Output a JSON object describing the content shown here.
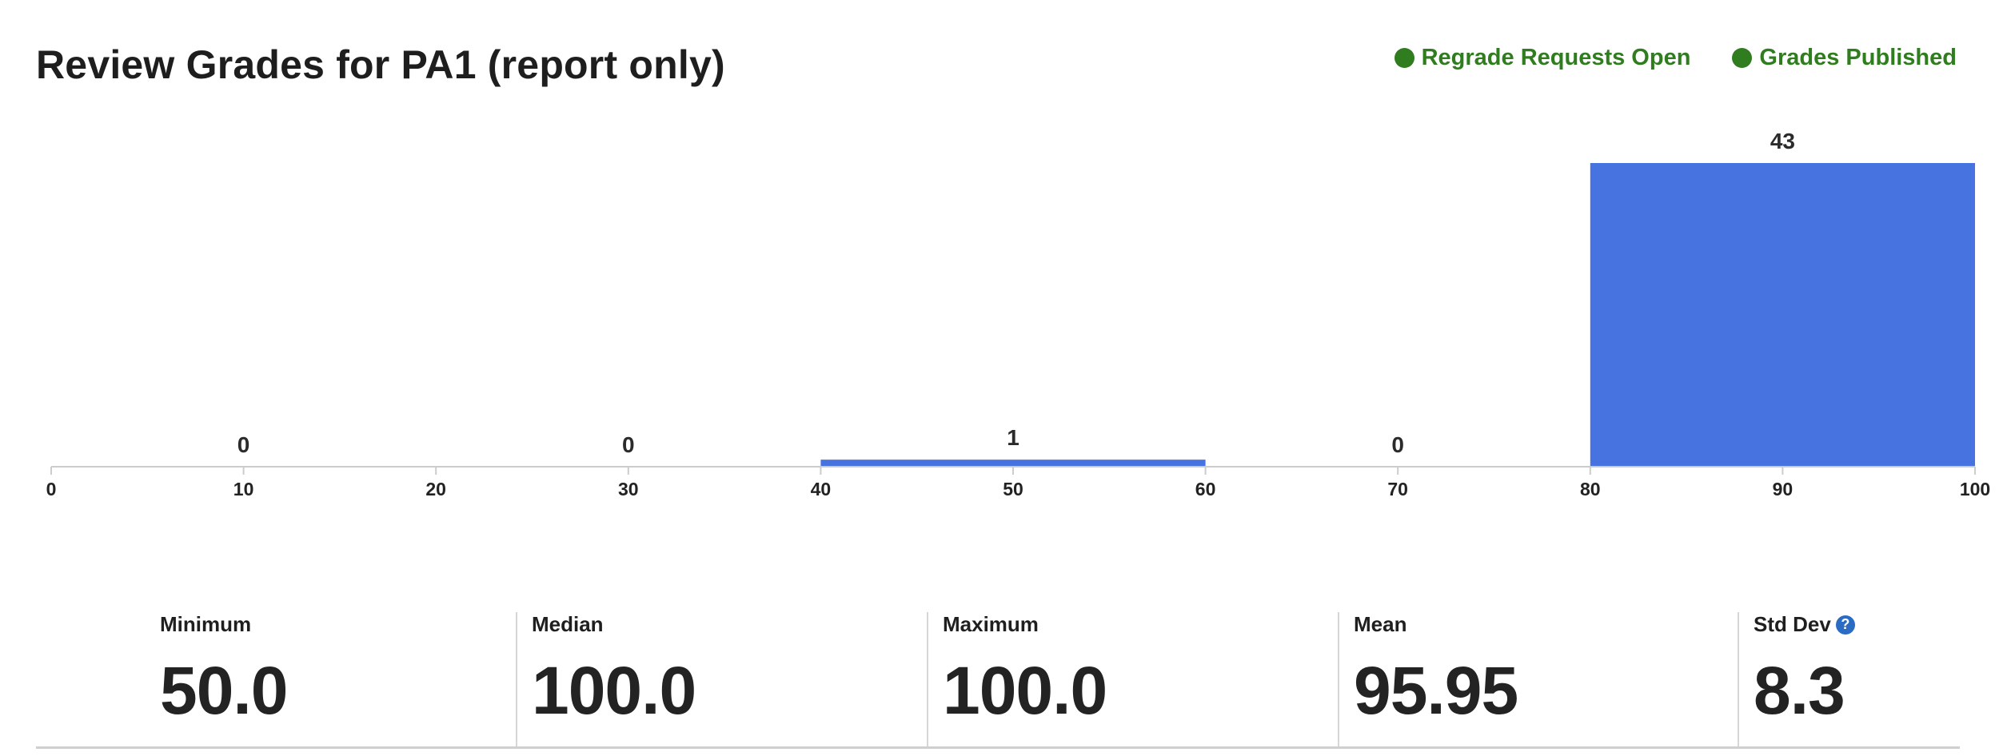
{
  "page": {
    "title": "Review Grades for PA1 (report only)"
  },
  "statuses": [
    {
      "label": "Regrade Requests Open",
      "color": "#2f7d1f"
    },
    {
      "label": "Grades Published",
      "color": "#2f7d1f"
    }
  ],
  "chart_data": {
    "type": "bar",
    "bins": [
      {
        "start": 0,
        "end": 20,
        "value": 0
      },
      {
        "start": 20,
        "end": 40,
        "value": 0
      },
      {
        "start": 40,
        "end": 60,
        "value": 1
      },
      {
        "start": 60,
        "end": 80,
        "value": 0
      },
      {
        "start": 80,
        "end": 100,
        "value": 43
      }
    ],
    "x_ticks": [
      "0",
      "10",
      "20",
      "30",
      "40",
      "50",
      "60",
      "70",
      "80",
      "90",
      "100"
    ],
    "xlim": [
      0,
      100
    ],
    "ylim": [
      0,
      43
    ],
    "bar_color": "#4673e0",
    "grid": false,
    "legend": "none"
  },
  "stats": [
    {
      "label": "Minimum",
      "value": "50.0",
      "help": false
    },
    {
      "label": "Median",
      "value": "100.0",
      "help": false
    },
    {
      "label": "Maximum",
      "value": "100.0",
      "help": false
    },
    {
      "label": "Mean",
      "value": "95.95",
      "help": false
    },
    {
      "label": "Std Dev",
      "value": "8.3",
      "help": true,
      "help_glyph": "?"
    }
  ]
}
